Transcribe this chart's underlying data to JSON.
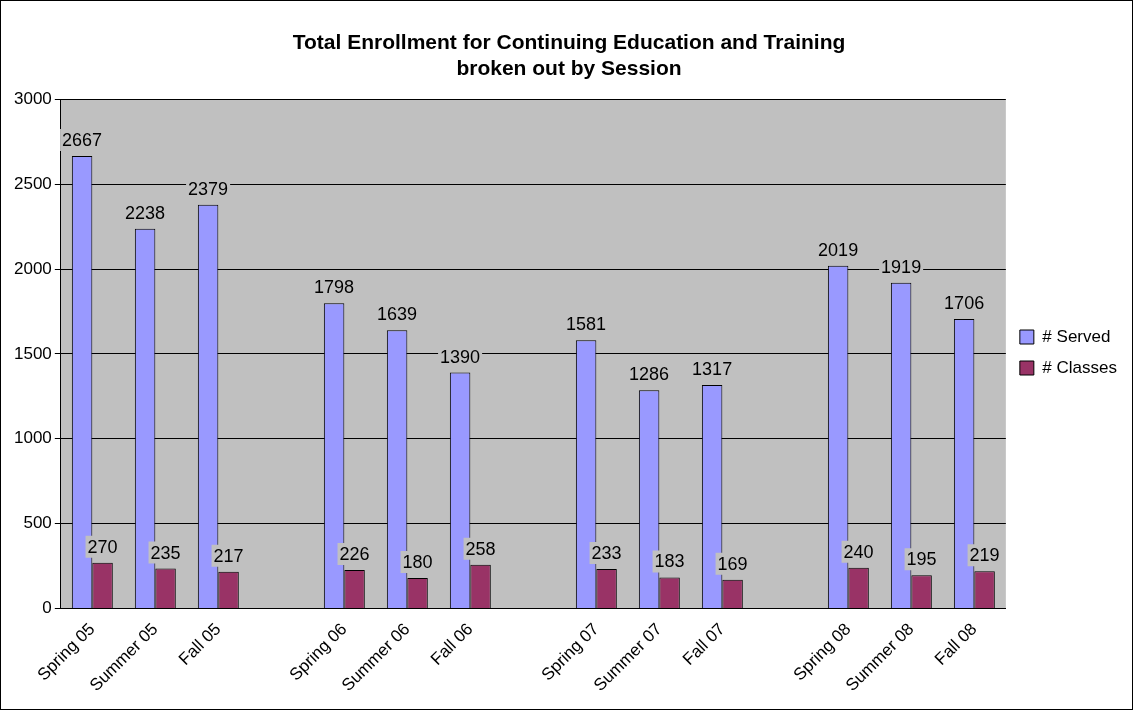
{
  "chart_data": {
    "type": "bar",
    "title": "Total Enrollment for Continuing Education and Training\nbroken out by Session",
    "categories": [
      "Spring 05",
      "Summer 05",
      "Fall 05",
      null,
      "Spring 06",
      "Summer 06",
      "Fall 06",
      null,
      "Spring 07",
      "Summer 07",
      "Fall 07",
      null,
      "Spring 08",
      "Summer 08",
      "Fall 08"
    ],
    "series": [
      {
        "name": "# Served",
        "color": "#9999ff",
        "values": [
          2667,
          2238,
          2379,
          null,
          1798,
          1639,
          1390,
          null,
          1581,
          1286,
          1317,
          null,
          2019,
          1919,
          1706
        ]
      },
      {
        "name": "# Classes",
        "color": "#993366",
        "values": [
          270,
          235,
          217,
          null,
          226,
          180,
          258,
          null,
          233,
          183,
          169,
          null,
          240,
          195,
          219
        ]
      }
    ],
    "ylim": [
      0,
      3000
    ],
    "yticks": [
      0,
      500,
      1000,
      1500,
      2000,
      2500,
      3000
    ],
    "grid": "y",
    "legend": "right",
    "data_labels": true
  }
}
